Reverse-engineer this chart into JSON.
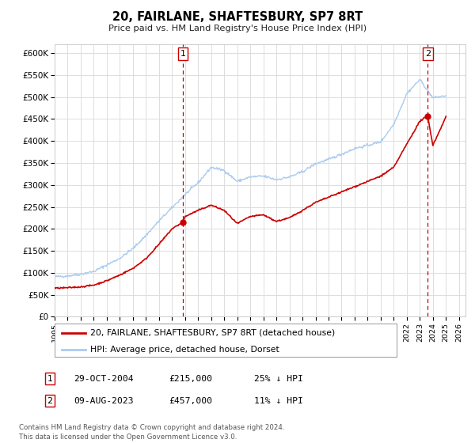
{
  "title": "20, FAIRLANE, SHAFTESBURY, SP7 8RT",
  "subtitle": "Price paid vs. HM Land Registry's House Price Index (HPI)",
  "legend_label_red": "20, FAIRLANE, SHAFTESBURY, SP7 8RT (detached house)",
  "legend_label_blue": "HPI: Average price, detached house, Dorset",
  "annotation1_date": "29-OCT-2004",
  "annotation1_price": "£215,000",
  "annotation1_hpi": "25% ↓ HPI",
  "annotation2_date": "09-AUG-2023",
  "annotation2_price": "£457,000",
  "annotation2_hpi": "11% ↓ HPI",
  "footer": "Contains HM Land Registry data © Crown copyright and database right 2024.\nThis data is licensed under the Open Government Licence v3.0.",
  "xlim_start": 1995.0,
  "xlim_end": 2026.5,
  "ylim_bottom": 0,
  "ylim_top": 620000,
  "yticks": [
    0,
    50000,
    100000,
    150000,
    200000,
    250000,
    300000,
    350000,
    400000,
    450000,
    500000,
    550000,
    600000
  ],
  "ytick_labels": [
    "£0",
    "£50K",
    "£100K",
    "£150K",
    "£200K",
    "£250K",
    "£300K",
    "£350K",
    "£400K",
    "£450K",
    "£500K",
    "£550K",
    "£600K"
  ],
  "red_color": "#cc0000",
  "blue_color": "#aaccee",
  "grid_color": "#dddddd",
  "background_color": "#ffffff",
  "marker1_x": 2004.83,
  "marker1_y": 215000,
  "marker2_x": 2023.6,
  "marker2_y": 457000,
  "vline1_x": 2004.83,
  "vline2_x": 2023.6,
  "hpi_years": [
    1995,
    1996,
    1997,
    1998,
    1999,
    2000,
    2001,
    2002,
    2003,
    2004,
    2005,
    2006,
    2007,
    2008,
    2009,
    2010,
    2011,
    2012,
    2013,
    2014,
    2015,
    2016,
    2017,
    2018,
    2019,
    2020,
    2021,
    2022,
    2023,
    2024,
    2025
  ],
  "hpi_values": [
    91000,
    93000,
    97000,
    103000,
    118000,
    133000,
    155000,
    185000,
    218000,
    248000,
    278000,
    305000,
    340000,
    333000,
    308000,
    318000,
    320000,
    312000,
    318000,
    330000,
    348000,
    358000,
    370000,
    383000,
    390000,
    398000,
    438000,
    508000,
    540000,
    498000,
    503000
  ],
  "red_years": [
    1995,
    1996,
    1997,
    1998,
    1999,
    2000,
    2001,
    2002,
    2003,
    2004,
    2004.83,
    2005,
    2006,
    2007,
    2008,
    2009,
    2010,
    2011,
    2012,
    2013,
    2014,
    2015,
    2016,
    2017,
    2018,
    2019,
    2020,
    2021,
    2022,
    2023,
    2023.6,
    2024,
    2025
  ],
  "red_values": [
    65000,
    66000,
    68000,
    72000,
    82000,
    95000,
    110000,
    132000,
    165000,
    200000,
    215000,
    228000,
    242000,
    254000,
    242000,
    212000,
    228000,
    232000,
    217000,
    225000,
    242000,
    260000,
    272000,
    284000,
    296000,
    308000,
    320000,
    340000,
    393000,
    445000,
    457000,
    390000,
    455000
  ]
}
